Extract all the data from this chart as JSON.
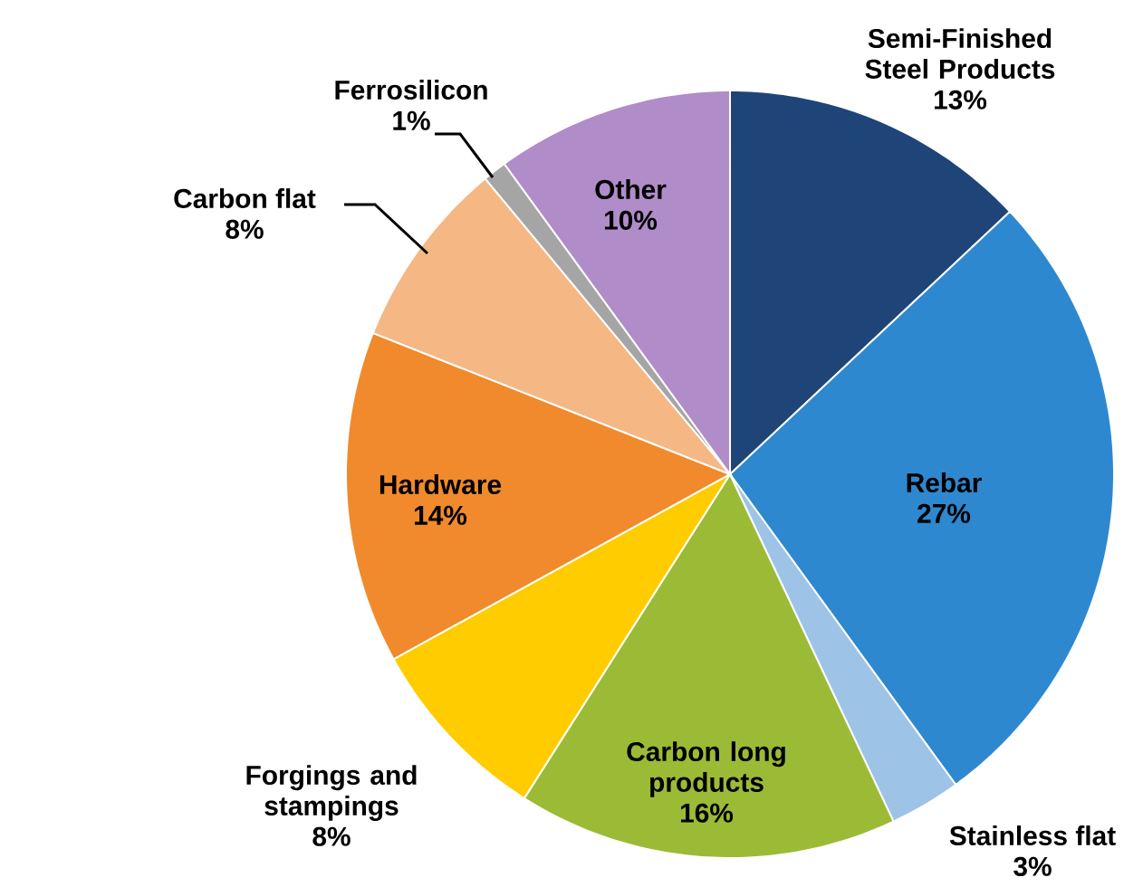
{
  "chart_data": {
    "type": "pie",
    "categories": [
      "Semi-Finished Steel Products",
      "Rebar",
      "Stainless flat",
      "Carbon long products",
      "Forgings and stampings",
      "Hardware",
      "Carbon flat",
      "Ferrosilicon",
      "Other"
    ],
    "values": [
      13,
      27,
      3,
      16,
      8,
      14,
      8,
      1,
      10
    ],
    "value_labels": [
      "13%",
      "27%",
      "3%",
      "16%",
      "8%",
      "14%",
      "8%",
      "1%",
      "10%"
    ],
    "colors": [
      "#1f4578",
      "#2e88cf",
      "#9dc3e6",
      "#9bbb36",
      "#ffcc00",
      "#f08a2c",
      "#f5b783",
      "#a5a5a5",
      "#b08cc8"
    ]
  }
}
